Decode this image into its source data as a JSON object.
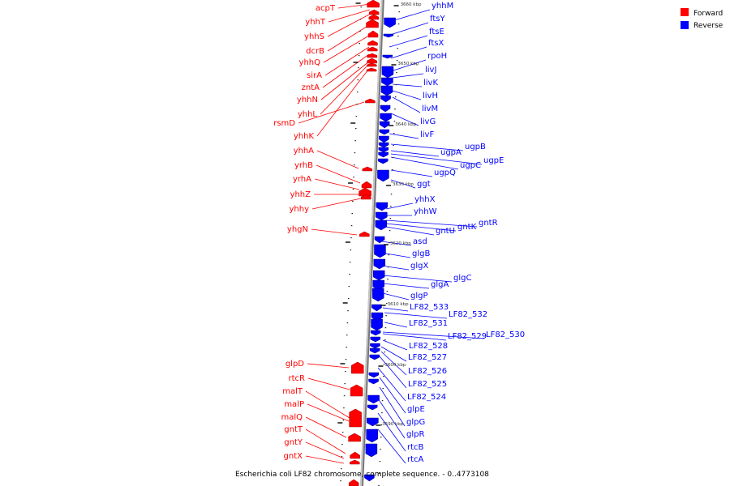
{
  "caption": "Escherichia coli LF82 chromosome, complete sequence. - 0..4773108",
  "legend": [
    {
      "label": "Forward",
      "color": "#ff0000"
    },
    {
      "label": "Reverse",
      "color": "#0000ff"
    }
  ],
  "colors": {
    "forward": "#ff0000",
    "reverse": "#0000ff",
    "backbone": "#9a9a9a"
  },
  "ticks": [
    "3660 kbp",
    "3650 kbp",
    "3640 kbp",
    "3630 kbp",
    "3620 kbp",
    "3610 kbp",
    "3600 kbp",
    "3590 kbp"
  ],
  "forward_genes": [
    "acpT",
    "yhhT",
    "yhhS",
    "dcrB",
    "yhhQ",
    "sirA",
    "zntA",
    "yhhN",
    "yhhL",
    "rsmD",
    "yhhK",
    "yhhA",
    "yrhB",
    "yrhA",
    "yhhZ",
    "yhhy",
    "yhgN",
    "glpD",
    "rtcR",
    "malT",
    "malP",
    "malQ",
    "gntT",
    "gntY",
    "gntX"
  ],
  "reverse_genes": [
    "yhhM",
    "ftsY",
    "ftsE",
    "ftsX",
    "rpoH",
    "livJ",
    "livK",
    "livH",
    "livM",
    "livG",
    "livF",
    "ugpB",
    "ugpA",
    "ugpC",
    "ugpE",
    "ugpQ",
    "ggt",
    "yhhX",
    "yhhW",
    "gntR",
    "gntK",
    "gntU",
    "asd",
    "glgB",
    "glgX",
    "glgC",
    "glgA",
    "glgP",
    "LF82_533",
    "LF82_532",
    "LF82_531",
    "LF82_530",
    "LF82_529",
    "LF82_528",
    "LF82_527",
    "LF82_526",
    "LF82_525",
    "LF82_524",
    "glpE",
    "glpG",
    "glpR",
    "rtcB",
    "rtcA"
  ]
}
